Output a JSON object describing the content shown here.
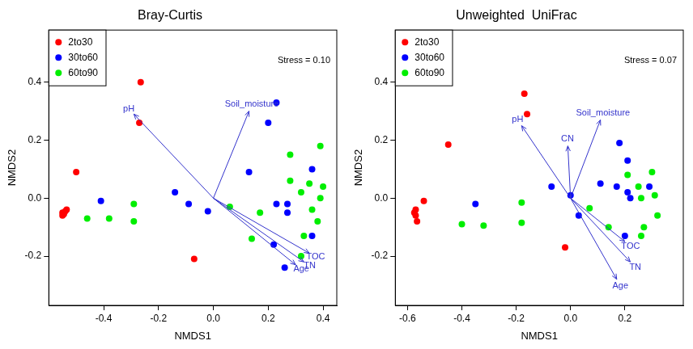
{
  "chart_data": [
    {
      "type": "scatter",
      "title": "Bray-Curtis",
      "x_label": "NMDS1",
      "y_label": "NMDS2",
      "xlim": [
        -0.6,
        0.45
      ],
      "ylim": [
        -0.37,
        0.58
      ],
      "xticks": [
        -0.4,
        -0.2,
        {
          "value": 0,
          "label": "0.0"
        },
        0.2,
        0.4
      ],
      "yticks": [
        -0.2,
        {
          "value": 0,
          "label": "0.0"
        },
        0.2,
        0.4
      ],
      "grid": false,
      "legend": "upper left",
      "annotation": "Stress = 0.10",
      "series": [
        {
          "name": "2to30",
          "color": "#ff0000",
          "x": [
            -0.265,
            -0.27,
            -0.5,
            -0.55,
            -0.545,
            -0.54,
            -0.535,
            -0.55,
            -0.07
          ],
          "y": [
            0.4,
            0.26,
            0.09,
            -0.05,
            -0.055,
            -0.045,
            -0.04,
            -0.06,
            -0.21
          ]
        },
        {
          "name": "30to60",
          "color": "#0000ff",
          "x": [
            0.23,
            0.2,
            0.13,
            0.36,
            -0.41,
            -0.14,
            -0.09,
            -0.02,
            0.23,
            0.27,
            0.27,
            0.22,
            0.26,
            0.36
          ],
          "y": [
            0.33,
            0.26,
            0.09,
            0.1,
            -0.01,
            0.02,
            -0.02,
            -0.045,
            -0.02,
            -0.02,
            -0.05,
            -0.16,
            -0.24,
            -0.13
          ]
        },
        {
          "name": "60to90",
          "color": "#00ee00",
          "x": [
            0.28,
            0.39,
            0.28,
            0.35,
            0.4,
            0.32,
            0.39,
            0.36,
            0.38,
            0.33,
            0.06,
            0.17,
            0.14,
            0.32,
            -0.46,
            -0.38,
            -0.29,
            -0.29
          ],
          "y": [
            0.15,
            0.18,
            0.06,
            0.05,
            0.04,
            0.02,
            0.0,
            -0.04,
            -0.08,
            -0.13,
            -0.03,
            -0.05,
            -0.14,
            -0.2,
            -0.07,
            -0.07,
            -0.02,
            -0.08
          ]
        }
      ],
      "vectors": [
        {
          "name": "pH",
          "x": -0.29,
          "y": 0.29,
          "color": "#3333cc"
        },
        {
          "name": "Soil_moisture",
          "x": 0.13,
          "y": 0.3,
          "color": "#3333cc"
        },
        {
          "name": "TOC",
          "x": 0.35,
          "y": -0.19,
          "color": "#3333cc"
        },
        {
          "name": "TN",
          "x": 0.33,
          "y": -0.22,
          "color": "#3333cc"
        },
        {
          "name": "Age",
          "x": 0.3,
          "y": -0.23,
          "color": "#3333cc"
        }
      ]
    },
    {
      "type": "scatter",
      "title": "Unweighted  UniFrac",
      "x_label": "NMDS1",
      "y_label": "NMDS2",
      "xlim": [
        -0.645,
        0.415
      ],
      "ylim": [
        -0.37,
        0.58
      ],
      "xticks": [
        -0.6,
        -0.4,
        -0.2,
        {
          "value": 0,
          "label": "0.0"
        },
        0.2
      ],
      "yticks": [
        -0.2,
        {
          "value": 0,
          "label": "0.0"
        },
        0.2,
        0.4
      ],
      "grid": false,
      "legend": "upper left",
      "annotation": "Stress = 0.07",
      "series": [
        {
          "name": "2to30",
          "color": "#ff0000",
          "x": [
            -0.17,
            -0.16,
            -0.45,
            -0.54,
            -0.57,
            -0.57,
            -0.565,
            -0.575,
            -0.02
          ],
          "y": [
            0.36,
            0.29,
            0.185,
            -0.01,
            -0.04,
            -0.06,
            -0.08,
            -0.05,
            -0.17
          ]
        },
        {
          "name": "30to60",
          "color": "#0000ff",
          "x": [
            0.18,
            0.21,
            0.11,
            0.17,
            0.21,
            0.22,
            0.29,
            -0.35,
            -0.07,
            0.0,
            0.03,
            0.2
          ],
          "y": [
            0.19,
            0.13,
            0.05,
            0.04,
            0.02,
            0.0,
            0.04,
            -0.02,
            0.04,
            0.01,
            -0.06,
            -0.13
          ]
        },
        {
          "name": "60to90",
          "color": "#00ee00",
          "x": [
            0.21,
            0.3,
            0.25,
            0.26,
            0.31,
            0.32,
            0.27,
            0.26,
            0.14,
            0.07,
            -0.4,
            -0.32,
            -0.18,
            -0.18
          ],
          "y": [
            0.08,
            0.09,
            0.04,
            0.0,
            0.01,
            -0.06,
            -0.1,
            -0.13,
            -0.1,
            -0.035,
            -0.09,
            -0.095,
            -0.015,
            -0.085
          ]
        }
      ],
      "vectors": [
        {
          "name": "pH",
          "x": -0.18,
          "y": 0.25,
          "color": "#3333cc"
        },
        {
          "name": "CN",
          "x": -0.01,
          "y": 0.18,
          "color": "#3333cc"
        },
        {
          "name": "Soil_moisture",
          "x": 0.11,
          "y": 0.27,
          "color": "#3333cc"
        },
        {
          "name": "TOC",
          "x": 0.2,
          "y": -0.15,
          "color": "#3333cc"
        },
        {
          "name": "TN",
          "x": 0.22,
          "y": -0.22,
          "color": "#3333cc"
        },
        {
          "name": "Age",
          "x": 0.17,
          "y": -0.28,
          "color": "#3333cc"
        }
      ]
    }
  ]
}
